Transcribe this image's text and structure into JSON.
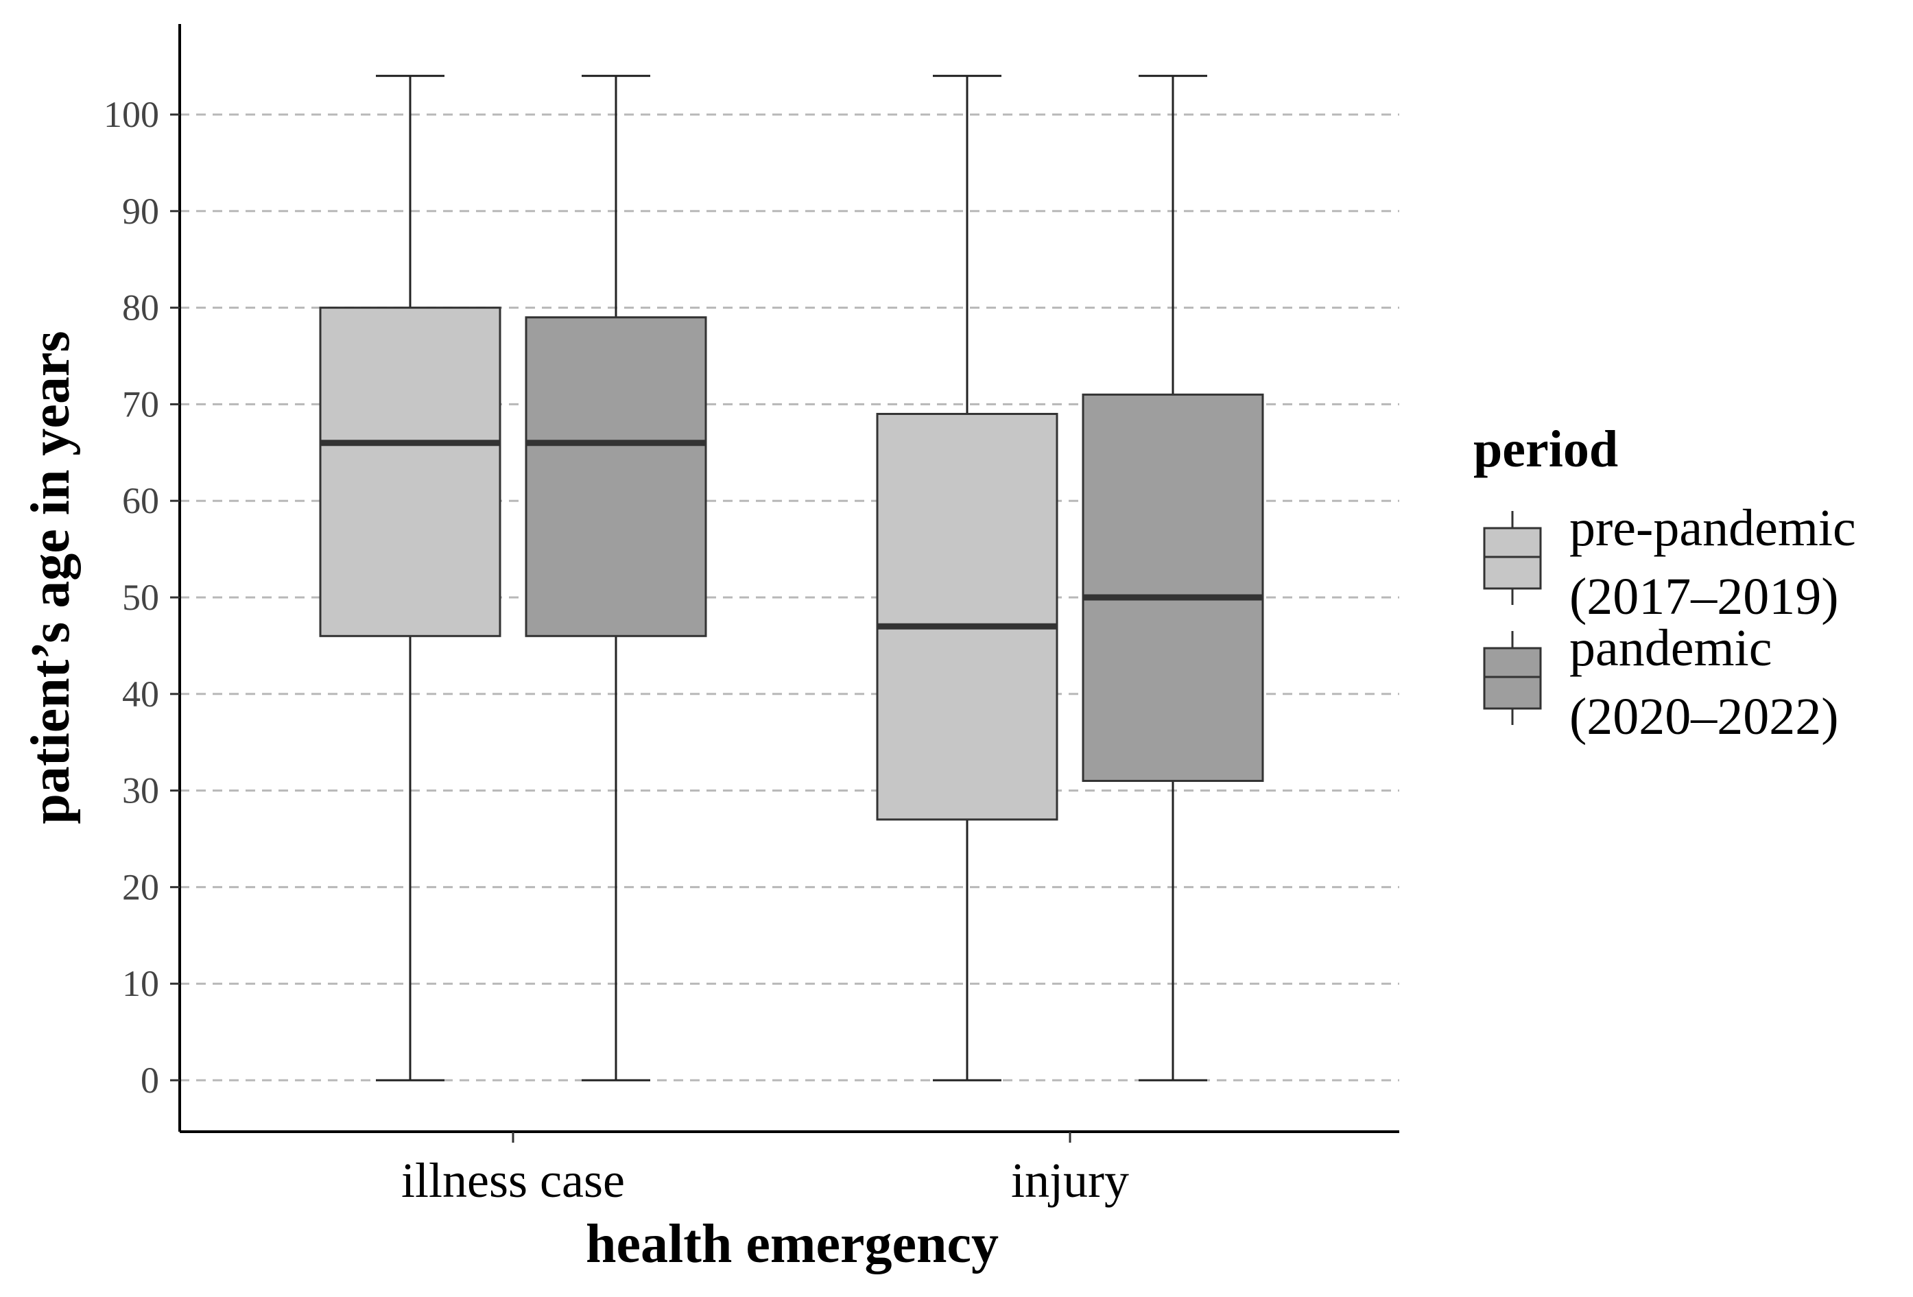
{
  "chart_data": {
    "type": "boxplot",
    "xlabel": "health emergency",
    "ylabel": "patient’s age in years",
    "ylim": [
      -5,
      106
    ],
    "yticks": [
      0,
      10,
      20,
      30,
      40,
      50,
      60,
      70,
      80,
      90,
      100
    ],
    "grid": "horizontal dashed",
    "categories": [
      "illness case",
      "injury"
    ],
    "legend": {
      "title": "period",
      "position": "right",
      "entries": [
        {
          "line1": "pre-pandemic",
          "line2": "(2017–2019)"
        },
        {
          "line1": "pandemic",
          "line2": "(2020–2022)"
        }
      ]
    },
    "series": [
      {
        "name": "pre-pandemic (2017–2019)",
        "color": "#c6c6c6",
        "boxes": [
          {
            "category": "illness case",
            "min": 0,
            "q1": 46,
            "median": 66,
            "q3": 80,
            "max": 104
          },
          {
            "category": "injury",
            "min": 0,
            "q1": 27,
            "median": 47,
            "q3": 69,
            "max": 104
          }
        ]
      },
      {
        "name": "pandemic (2020–2022)",
        "color": "#9e9e9e",
        "boxes": [
          {
            "category": "illness case",
            "min": 0,
            "q1": 46,
            "median": 66,
            "q3": 79,
            "max": 104
          },
          {
            "category": "injury",
            "min": 0,
            "q1": 31,
            "median": 50,
            "q3": 71,
            "max": 104
          }
        ]
      }
    ]
  }
}
